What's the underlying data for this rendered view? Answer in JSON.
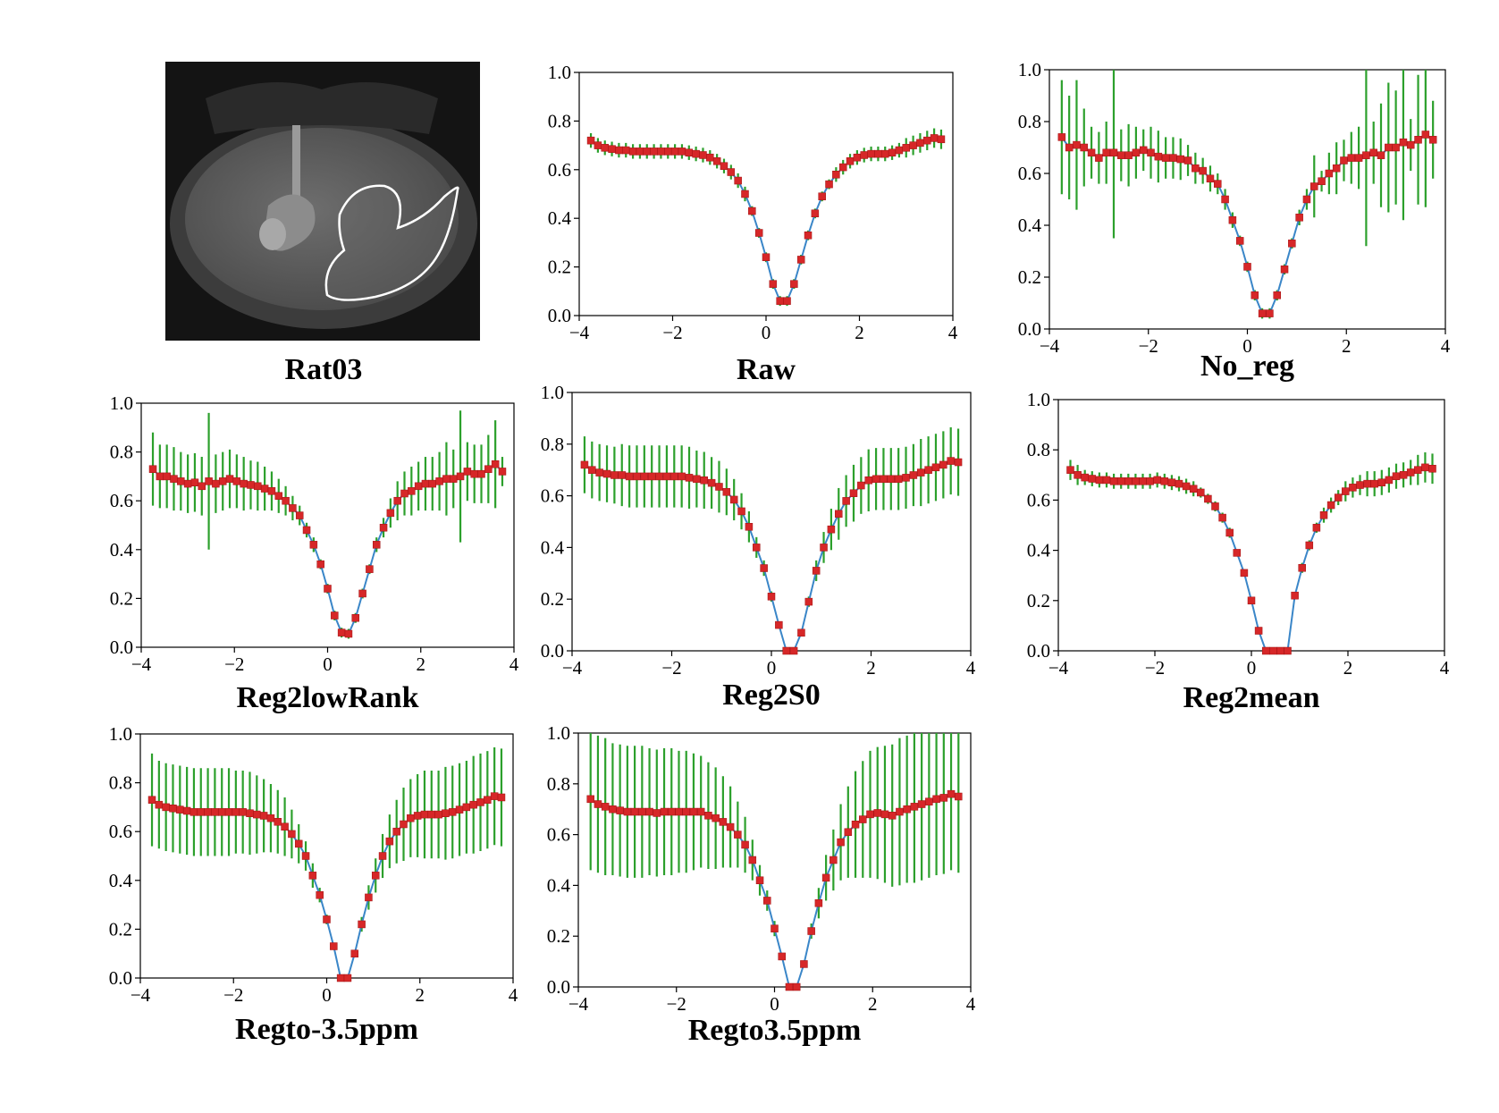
{
  "image_panel": {
    "title": "Rat03",
    "content": "axial grayscale MRI slice of rat brain with white ROI outline"
  },
  "chart_data": [
    {
      "type": "scatter",
      "title": "Raw",
      "xlim": [
        -4,
        4
      ],
      "ylim": [
        0,
        1
      ],
      "xticks": [
        "−4",
        "−2",
        "0",
        "2",
        "4"
      ],
      "yticks": [
        "0.0",
        "0.2",
        "0.4",
        "0.6",
        "0.8",
        "1.0"
      ],
      "x": [
        -3.75,
        -3.6,
        -3.45,
        -3.3,
        -3.15,
        -3.0,
        -2.85,
        -2.7,
        -2.55,
        -2.4,
        -2.25,
        -2.1,
        -1.95,
        -1.8,
        -1.65,
        -1.5,
        -1.35,
        -1.2,
        -1.05,
        -0.9,
        -0.75,
        -0.6,
        -0.45,
        -0.3,
        -0.15,
        0.0,
        0.15,
        0.3,
        0.45,
        0.6,
        0.75,
        0.9,
        1.05,
        1.2,
        1.35,
        1.5,
        1.65,
        1.8,
        1.95,
        2.1,
        2.25,
        2.4,
        2.55,
        2.7,
        2.85,
        3.0,
        3.15,
        3.3,
        3.45,
        3.6,
        3.75
      ],
      "y": [
        0.72,
        0.7,
        0.69,
        0.685,
        0.68,
        0.68,
        0.675,
        0.675,
        0.675,
        0.675,
        0.675,
        0.675,
        0.675,
        0.675,
        0.67,
        0.665,
        0.66,
        0.65,
        0.635,
        0.615,
        0.59,
        0.555,
        0.5,
        0.43,
        0.34,
        0.24,
        0.13,
        0.06,
        0.06,
        0.13,
        0.23,
        0.33,
        0.42,
        0.49,
        0.54,
        0.58,
        0.61,
        0.635,
        0.65,
        0.66,
        0.665,
        0.665,
        0.665,
        0.67,
        0.68,
        0.69,
        0.7,
        0.71,
        0.72,
        0.73,
        0.725
      ],
      "err": [
        0.03,
        0.03,
        0.03,
        0.03,
        0.03,
        0.03,
        0.03,
        0.03,
        0.03,
        0.03,
        0.03,
        0.03,
        0.03,
        0.03,
        0.03,
        0.03,
        0.03,
        0.03,
        0.03,
        0.03,
        0.03,
        0.03,
        0.03,
        0.02,
        0.02,
        0.02,
        0.02,
        0.02,
        0.02,
        0.02,
        0.02,
        0.02,
        0.02,
        0.02,
        0.02,
        0.03,
        0.03,
        0.03,
        0.03,
        0.03,
        0.03,
        0.03,
        0.03,
        0.03,
        0.03,
        0.04,
        0.04,
        0.04,
        0.04,
        0.04,
        0.04
      ]
    },
    {
      "type": "scatter",
      "title": "No_reg",
      "xlim": [
        -4,
        4
      ],
      "ylim": [
        0,
        1
      ],
      "xticks": [
        "−4",
        "−2",
        "0",
        "2",
        "4"
      ],
      "yticks": [
        "0.0",
        "0.2",
        "0.4",
        "0.6",
        "0.8",
        "1.0"
      ],
      "x": [
        -3.75,
        -3.6,
        -3.45,
        -3.3,
        -3.15,
        -3.0,
        -2.85,
        -2.7,
        -2.55,
        -2.4,
        -2.25,
        -2.1,
        -1.95,
        -1.8,
        -1.65,
        -1.5,
        -1.35,
        -1.2,
        -1.05,
        -0.9,
        -0.75,
        -0.6,
        -0.45,
        -0.3,
        -0.15,
        0.0,
        0.15,
        0.3,
        0.45,
        0.6,
        0.75,
        0.9,
        1.05,
        1.2,
        1.35,
        1.5,
        1.65,
        1.8,
        1.95,
        2.1,
        2.25,
        2.4,
        2.55,
        2.7,
        2.85,
        3.0,
        3.15,
        3.3,
        3.45,
        3.6,
        3.75
      ],
      "y": [
        0.74,
        0.7,
        0.71,
        0.7,
        0.68,
        0.66,
        0.68,
        0.68,
        0.67,
        0.67,
        0.68,
        0.69,
        0.68,
        0.665,
        0.66,
        0.66,
        0.655,
        0.65,
        0.62,
        0.61,
        0.58,
        0.56,
        0.5,
        0.42,
        0.34,
        0.24,
        0.13,
        0.06,
        0.06,
        0.13,
        0.23,
        0.33,
        0.43,
        0.5,
        0.55,
        0.57,
        0.6,
        0.62,
        0.65,
        0.66,
        0.66,
        0.67,
        0.68,
        0.67,
        0.7,
        0.7,
        0.72,
        0.71,
        0.73,
        0.75,
        0.73
      ],
      "err": [
        0.22,
        0.2,
        0.25,
        0.15,
        0.1,
        0.1,
        0.12,
        0.33,
        0.1,
        0.12,
        0.1,
        0.08,
        0.1,
        0.1,
        0.08,
        0.08,
        0.08,
        0.06,
        0.06,
        0.05,
        0.05,
        0.04,
        0.04,
        0.03,
        0.02,
        0.02,
        0.02,
        0.02,
        0.02,
        0.02,
        0.02,
        0.02,
        0.03,
        0.04,
        0.12,
        0.04,
        0.08,
        0.1,
        0.08,
        0.1,
        0.12,
        0.35,
        0.12,
        0.2,
        0.25,
        0.22,
        0.3,
        0.1,
        0.25,
        0.28,
        0.15
      ]
    },
    {
      "type": "scatter",
      "title": "Reg2lowRank",
      "xlim": [
        -4,
        4
      ],
      "ylim": [
        0,
        1
      ],
      "xticks": [
        "−4",
        "−2",
        "0",
        "2",
        "4"
      ],
      "yticks": [
        "0.0",
        "0.2",
        "0.4",
        "0.6",
        "0.8",
        "1.0"
      ],
      "x": [
        -3.75,
        -3.6,
        -3.45,
        -3.3,
        -3.15,
        -3.0,
        -2.85,
        -2.7,
        -2.55,
        -2.4,
        -2.25,
        -2.1,
        -1.95,
        -1.8,
        -1.65,
        -1.5,
        -1.35,
        -1.2,
        -1.05,
        -0.9,
        -0.75,
        -0.6,
        -0.45,
        -0.3,
        -0.15,
        0.0,
        0.15,
        0.3,
        0.45,
        0.6,
        0.75,
        0.9,
        1.05,
        1.2,
        1.35,
        1.5,
        1.65,
        1.8,
        1.95,
        2.1,
        2.25,
        2.4,
        2.55,
        2.7,
        2.85,
        3.0,
        3.15,
        3.3,
        3.45,
        3.6,
        3.75
      ],
      "y": [
        0.73,
        0.7,
        0.7,
        0.69,
        0.68,
        0.67,
        0.675,
        0.66,
        0.68,
        0.67,
        0.68,
        0.69,
        0.68,
        0.67,
        0.665,
        0.66,
        0.65,
        0.64,
        0.62,
        0.6,
        0.57,
        0.54,
        0.48,
        0.42,
        0.34,
        0.24,
        0.13,
        0.06,
        0.055,
        0.12,
        0.22,
        0.32,
        0.42,
        0.49,
        0.55,
        0.6,
        0.63,
        0.64,
        0.66,
        0.67,
        0.67,
        0.68,
        0.69,
        0.69,
        0.7,
        0.72,
        0.71,
        0.71,
        0.73,
        0.75,
        0.72
      ],
      "err": [
        0.15,
        0.13,
        0.13,
        0.13,
        0.12,
        0.12,
        0.12,
        0.12,
        0.28,
        0.12,
        0.12,
        0.12,
        0.11,
        0.11,
        0.1,
        0.1,
        0.09,
        0.08,
        0.07,
        0.06,
        0.05,
        0.04,
        0.03,
        0.03,
        0.02,
        0.02,
        0.02,
        0.02,
        0.02,
        0.02,
        0.02,
        0.02,
        0.03,
        0.04,
        0.06,
        0.08,
        0.09,
        0.1,
        0.1,
        0.11,
        0.11,
        0.12,
        0.15,
        0.12,
        0.27,
        0.12,
        0.12,
        0.12,
        0.14,
        0.18,
        0.06
      ]
    },
    {
      "type": "scatter",
      "title": "Reg2S0",
      "xlim": [
        -4,
        4
      ],
      "ylim": [
        0,
        1
      ],
      "xticks": [
        "−4",
        "−2",
        "0",
        "2",
        "4"
      ],
      "yticks": [
        "0.0",
        "0.2",
        "0.4",
        "0.6",
        "0.8",
        "1.0"
      ],
      "x": [
        -3.75,
        -3.6,
        -3.45,
        -3.3,
        -3.15,
        -3.0,
        -2.85,
        -2.7,
        -2.55,
        -2.4,
        -2.25,
        -2.1,
        -1.95,
        -1.8,
        -1.65,
        -1.5,
        -1.35,
        -1.2,
        -1.05,
        -0.9,
        -0.75,
        -0.6,
        -0.45,
        -0.3,
        -0.15,
        0.0,
        0.15,
        0.3,
        0.45,
        0.6,
        0.75,
        0.9,
        1.05,
        1.2,
        1.35,
        1.5,
        1.65,
        1.8,
        1.95,
        2.1,
        2.25,
        2.4,
        2.55,
        2.7,
        2.85,
        3.0,
        3.15,
        3.3,
        3.45,
        3.6,
        3.75
      ],
      "y": [
        0.72,
        0.7,
        0.69,
        0.685,
        0.68,
        0.68,
        0.675,
        0.675,
        0.675,
        0.675,
        0.675,
        0.675,
        0.675,
        0.675,
        0.67,
        0.665,
        0.66,
        0.65,
        0.635,
        0.615,
        0.585,
        0.54,
        0.48,
        0.4,
        0.32,
        0.21,
        0.1,
        0.0,
        0.0,
        0.07,
        0.19,
        0.31,
        0.4,
        0.47,
        0.53,
        0.58,
        0.61,
        0.64,
        0.66,
        0.665,
        0.665,
        0.665,
        0.665,
        0.67,
        0.68,
        0.69,
        0.7,
        0.71,
        0.72,
        0.735,
        0.73
      ],
      "err": [
        0.11,
        0.11,
        0.11,
        0.11,
        0.11,
        0.12,
        0.12,
        0.12,
        0.12,
        0.12,
        0.12,
        0.12,
        0.12,
        0.12,
        0.12,
        0.11,
        0.11,
        0.1,
        0.1,
        0.09,
        0.08,
        0.07,
        0.06,
        0.04,
        0.03,
        0.02,
        0.01,
        0.0,
        0.0,
        0.01,
        0.02,
        0.04,
        0.06,
        0.08,
        0.1,
        0.1,
        0.11,
        0.11,
        0.12,
        0.12,
        0.12,
        0.12,
        0.12,
        0.12,
        0.12,
        0.13,
        0.13,
        0.13,
        0.13,
        0.13,
        0.13
      ]
    },
    {
      "type": "scatter",
      "title": "Reg2mean",
      "xlim": [
        -4,
        4
      ],
      "ylim": [
        0,
        1
      ],
      "xticks": [
        "−4",
        "−2",
        "0",
        "2",
        "4"
      ],
      "yticks": [
        "0.0",
        "0.2",
        "0.4",
        "0.6",
        "0.8",
        "1.0"
      ],
      "x": [
        -3.75,
        -3.6,
        -3.45,
        -3.3,
        -3.15,
        -3.0,
        -2.85,
        -2.7,
        -2.55,
        -2.4,
        -2.25,
        -2.1,
        -1.95,
        -1.8,
        -1.65,
        -1.5,
        -1.35,
        -1.2,
        -1.05,
        -0.9,
        -0.75,
        -0.6,
        -0.45,
        -0.3,
        -0.15,
        0.0,
        0.15,
        0.3,
        0.45,
        0.6,
        0.75,
        0.9,
        1.05,
        1.2,
        1.35,
        1.5,
        1.65,
        1.8,
        1.95,
        2.1,
        2.25,
        2.4,
        2.55,
        2.7,
        2.85,
        3.0,
        3.15,
        3.3,
        3.45,
        3.6,
        3.75
      ],
      "y": [
        0.72,
        0.7,
        0.69,
        0.685,
        0.68,
        0.68,
        0.675,
        0.675,
        0.675,
        0.675,
        0.675,
        0.675,
        0.68,
        0.675,
        0.67,
        0.665,
        0.655,
        0.645,
        0.63,
        0.605,
        0.575,
        0.53,
        0.47,
        0.39,
        0.31,
        0.2,
        0.08,
        0.0,
        0.0,
        0.0,
        0.0,
        0.22,
        0.33,
        0.42,
        0.49,
        0.54,
        0.58,
        0.61,
        0.635,
        0.65,
        0.66,
        0.665,
        0.665,
        0.67,
        0.68,
        0.695,
        0.7,
        0.71,
        0.72,
        0.73,
        0.725
      ],
      "err": [
        0.04,
        0.04,
        0.03,
        0.03,
        0.03,
        0.03,
        0.03,
        0.03,
        0.03,
        0.03,
        0.03,
        0.03,
        0.03,
        0.03,
        0.03,
        0.03,
        0.03,
        0.03,
        0.02,
        0.02,
        0.02,
        0.02,
        0.02,
        0.01,
        0.01,
        0.01,
        0.01,
        0.0,
        0.0,
        0.0,
        0.0,
        0.01,
        0.02,
        0.02,
        0.02,
        0.03,
        0.03,
        0.03,
        0.04,
        0.04,
        0.04,
        0.05,
        0.05,
        0.05,
        0.05,
        0.05,
        0.05,
        0.05,
        0.06,
        0.06,
        0.06
      ]
    },
    {
      "type": "scatter",
      "title": "Regto-3.5ppm",
      "xlim": [
        -4,
        4
      ],
      "ylim": [
        0,
        1
      ],
      "xticks": [
        "−4",
        "−2",
        "0",
        "2",
        "4"
      ],
      "yticks": [
        "0.0",
        "0.2",
        "0.4",
        "0.6",
        "0.8",
        "1.0"
      ],
      "x": [
        -3.75,
        -3.6,
        -3.45,
        -3.3,
        -3.15,
        -3.0,
        -2.85,
        -2.7,
        -2.55,
        -2.4,
        -2.25,
        -2.1,
        -1.95,
        -1.8,
        -1.65,
        -1.5,
        -1.35,
        -1.2,
        -1.05,
        -0.9,
        -0.75,
        -0.6,
        -0.45,
        -0.3,
        -0.15,
        0.0,
        0.15,
        0.3,
        0.45,
        0.6,
        0.75,
        0.9,
        1.05,
        1.2,
        1.35,
        1.5,
        1.65,
        1.8,
        1.95,
        2.1,
        2.25,
        2.4,
        2.55,
        2.7,
        2.85,
        3.0,
        3.15,
        3.3,
        3.45,
        3.6,
        3.75
      ],
      "y": [
        0.73,
        0.71,
        0.7,
        0.695,
        0.69,
        0.685,
        0.68,
        0.68,
        0.68,
        0.68,
        0.68,
        0.68,
        0.68,
        0.68,
        0.675,
        0.67,
        0.665,
        0.655,
        0.64,
        0.62,
        0.59,
        0.55,
        0.5,
        0.42,
        0.34,
        0.24,
        0.13,
        0.0,
        0.0,
        0.1,
        0.22,
        0.33,
        0.42,
        0.5,
        0.56,
        0.6,
        0.63,
        0.655,
        0.665,
        0.67,
        0.67,
        0.67,
        0.675,
        0.68,
        0.69,
        0.7,
        0.71,
        0.72,
        0.73,
        0.745,
        0.74
      ],
      "err": [
        0.19,
        0.18,
        0.18,
        0.18,
        0.18,
        0.18,
        0.18,
        0.18,
        0.18,
        0.18,
        0.18,
        0.18,
        0.17,
        0.17,
        0.17,
        0.16,
        0.15,
        0.14,
        0.13,
        0.12,
        0.1,
        0.08,
        0.06,
        0.05,
        0.03,
        0.02,
        0.01,
        0.0,
        0.0,
        0.01,
        0.03,
        0.05,
        0.07,
        0.09,
        0.11,
        0.13,
        0.15,
        0.16,
        0.17,
        0.18,
        0.18,
        0.18,
        0.19,
        0.19,
        0.19,
        0.19,
        0.2,
        0.2,
        0.2,
        0.2,
        0.2
      ]
    },
    {
      "type": "scatter",
      "title": "Regto3.5ppm",
      "xlim": [
        -4,
        4
      ],
      "ylim": [
        0,
        1
      ],
      "xticks": [
        "−4",
        "−2",
        "0",
        "2",
        "4"
      ],
      "yticks": [
        "0.0",
        "0.2",
        "0.4",
        "0.6",
        "0.8",
        "1.0"
      ],
      "x": [
        -3.75,
        -3.6,
        -3.45,
        -3.3,
        -3.15,
        -3.0,
        -2.85,
        -2.7,
        -2.55,
        -2.4,
        -2.25,
        -2.1,
        -1.95,
        -1.8,
        -1.65,
        -1.5,
        -1.35,
        -1.2,
        -1.05,
        -0.9,
        -0.75,
        -0.6,
        -0.45,
        -0.3,
        -0.15,
        0.0,
        0.15,
        0.3,
        0.45,
        0.6,
        0.75,
        0.9,
        1.05,
        1.2,
        1.35,
        1.5,
        1.65,
        1.8,
        1.95,
        2.1,
        2.25,
        2.4,
        2.55,
        2.7,
        2.85,
        3.0,
        3.15,
        3.3,
        3.45,
        3.6,
        3.75
      ],
      "y": [
        0.74,
        0.72,
        0.71,
        0.7,
        0.695,
        0.69,
        0.69,
        0.69,
        0.69,
        0.685,
        0.69,
        0.69,
        0.69,
        0.69,
        0.69,
        0.69,
        0.675,
        0.665,
        0.65,
        0.63,
        0.6,
        0.56,
        0.5,
        0.42,
        0.34,
        0.23,
        0.12,
        0.0,
        0.0,
        0.09,
        0.22,
        0.33,
        0.43,
        0.5,
        0.57,
        0.61,
        0.64,
        0.66,
        0.68,
        0.685,
        0.68,
        0.675,
        0.69,
        0.7,
        0.71,
        0.72,
        0.73,
        0.74,
        0.745,
        0.76,
        0.75
      ],
      "err": [
        0.28,
        0.27,
        0.27,
        0.26,
        0.26,
        0.26,
        0.26,
        0.26,
        0.25,
        0.25,
        0.25,
        0.25,
        0.24,
        0.24,
        0.23,
        0.22,
        0.21,
        0.2,
        0.18,
        0.16,
        0.13,
        0.11,
        0.08,
        0.06,
        0.04,
        0.03,
        0.01,
        0.0,
        0.0,
        0.01,
        0.03,
        0.06,
        0.09,
        0.12,
        0.15,
        0.18,
        0.21,
        0.23,
        0.25,
        0.26,
        0.27,
        0.28,
        0.29,
        0.29,
        0.3,
        0.3,
        0.3,
        0.3,
        0.3,
        0.3,
        0.3
      ]
    }
  ]
}
